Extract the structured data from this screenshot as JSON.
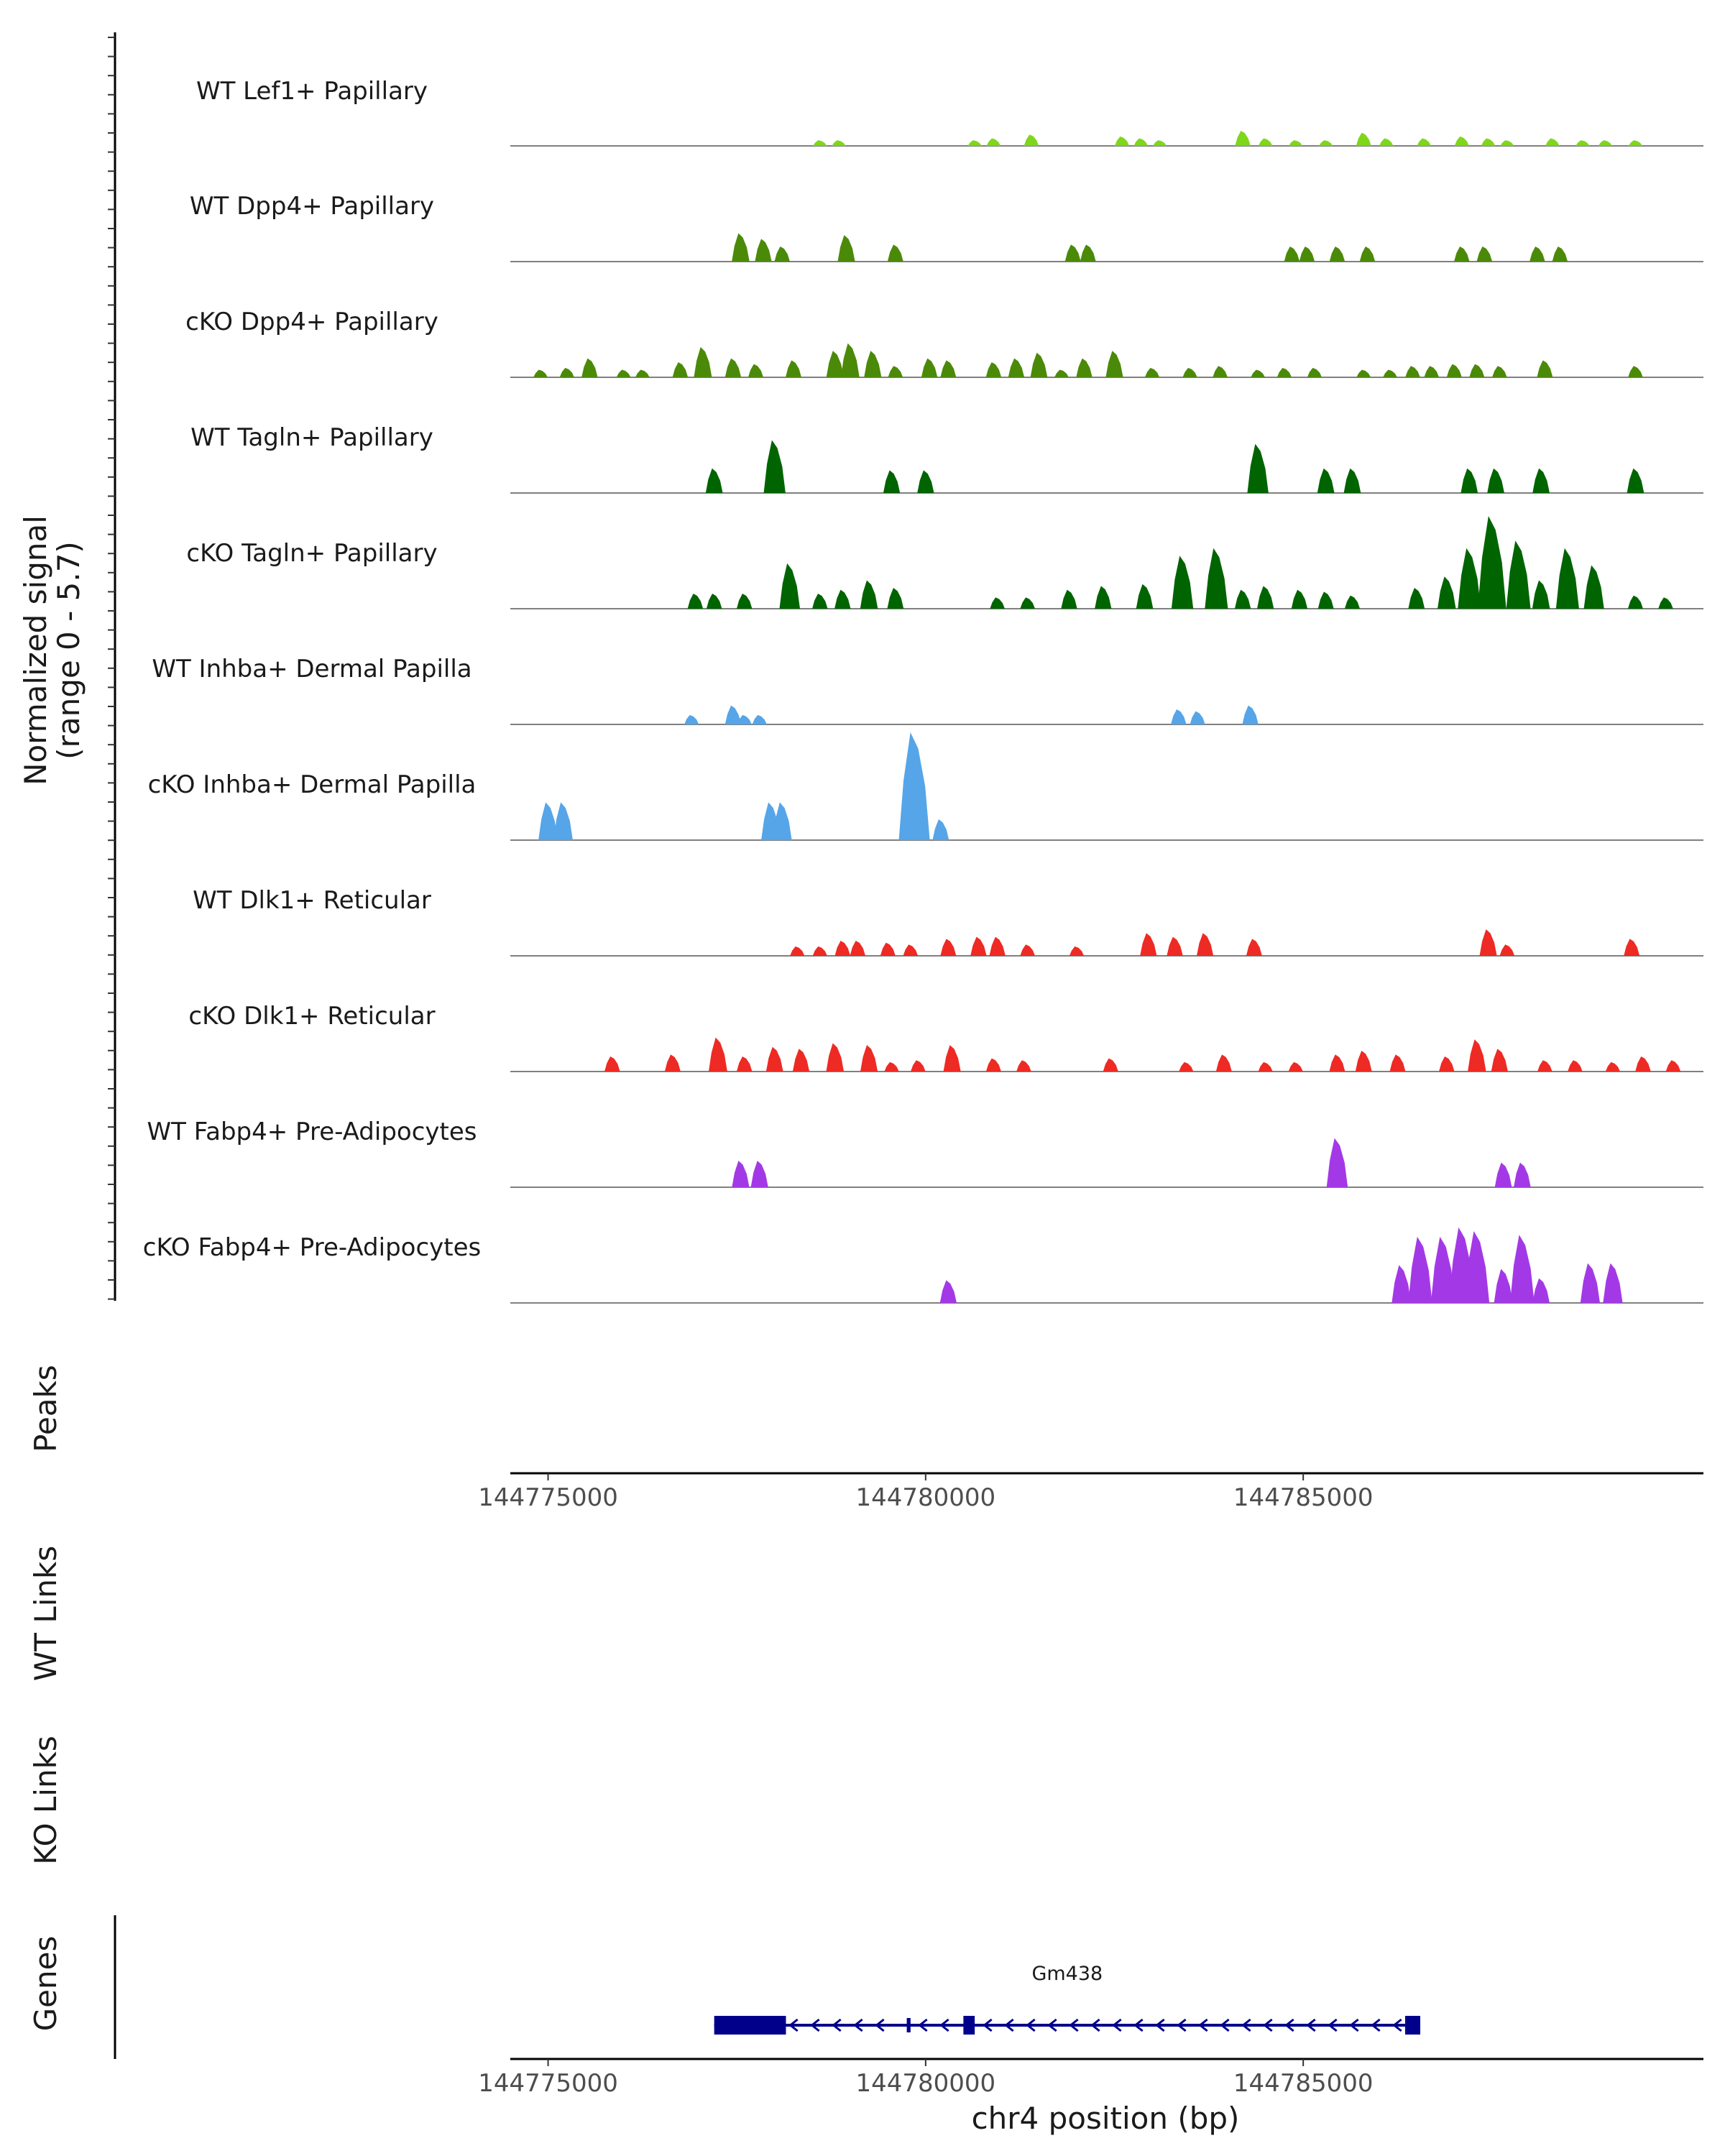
{
  "chart_data": {
    "type": "genome-coverage",
    "y_axis_label": "Normalized signal",
    "y_axis_range_label": "(range 0 - 5.7)",
    "y_range": [
      0,
      5.7
    ],
    "x_axis_label": "chr4 position (bp)",
    "chromosome": "chr4",
    "xlim": [
      144774500,
      144790300
    ],
    "x_ticks": [
      144775000,
      144780000,
      144785000
    ],
    "x_tick_labels": [
      "144775000",
      "144780000",
      "144785000"
    ],
    "tracks": [
      {
        "name": "WT Lef1+ Papillary",
        "color": "#7fd61b",
        "peaks": [
          [
            144778600,
            0.3
          ],
          [
            144778850,
            0.3
          ],
          [
            144780650,
            0.3
          ],
          [
            144780900,
            0.4
          ],
          [
            144781400,
            0.6
          ],
          [
            144782600,
            0.5
          ],
          [
            144782850,
            0.4
          ],
          [
            144783100,
            0.3
          ],
          [
            144784200,
            0.8
          ],
          [
            144784500,
            0.4
          ],
          [
            144784900,
            0.3
          ],
          [
            144785300,
            0.3
          ],
          [
            144785800,
            0.7
          ],
          [
            144786100,
            0.4
          ],
          [
            144786600,
            0.4
          ],
          [
            144787100,
            0.5
          ],
          [
            144787450,
            0.4
          ],
          [
            144787700,
            0.3
          ],
          [
            144788300,
            0.4
          ],
          [
            144788700,
            0.3
          ],
          [
            144789000,
            0.3
          ],
          [
            144789400,
            0.3
          ]
        ]
      },
      {
        "name": "WT Dpp4+ Papillary",
        "color": "#4b8a08",
        "peaks": [
          [
            144777550,
            1.5
          ],
          [
            144777850,
            1.2
          ],
          [
            144778100,
            0.8
          ],
          [
            144778950,
            1.4
          ],
          [
            144779600,
            0.9
          ],
          [
            144781950,
            0.9
          ],
          [
            144782150,
            0.9
          ],
          [
            144784850,
            0.8
          ],
          [
            144785050,
            0.8
          ],
          [
            144785450,
            0.8
          ],
          [
            144785850,
            0.8
          ],
          [
            144787100,
            0.8
          ],
          [
            144787400,
            0.8
          ],
          [
            144788100,
            0.8
          ],
          [
            144788400,
            0.8
          ]
        ]
      },
      {
        "name": "cKO Dpp4+ Papillary",
        "color": "#4b8a08",
        "peaks": [
          [
            144774900,
            0.4
          ],
          [
            144775250,
            0.5
          ],
          [
            144775550,
            1.0
          ],
          [
            144776000,
            0.4
          ],
          [
            144776250,
            0.4
          ],
          [
            144776750,
            0.8
          ],
          [
            144777050,
            1.6
          ],
          [
            144777450,
            1.0
          ],
          [
            144777750,
            0.7
          ],
          [
            144778250,
            0.9
          ],
          [
            144778800,
            1.4
          ],
          [
            144779000,
            1.8
          ],
          [
            144779300,
            1.4
          ],
          [
            144779600,
            0.6
          ],
          [
            144780050,
            1.0
          ],
          [
            144780300,
            0.9
          ],
          [
            144780900,
            0.8
          ],
          [
            144781200,
            1.0
          ],
          [
            144781500,
            1.3
          ],
          [
            144781800,
            0.4
          ],
          [
            144782100,
            1.0
          ],
          [
            144782500,
            1.4
          ],
          [
            144783000,
            0.5
          ],
          [
            144783500,
            0.5
          ],
          [
            144783900,
            0.6
          ],
          [
            144784400,
            0.4
          ],
          [
            144784750,
            0.5
          ],
          [
            144785150,
            0.5
          ],
          [
            144785800,
            0.4
          ],
          [
            144786150,
            0.4
          ],
          [
            144786450,
            0.6
          ],
          [
            144786700,
            0.6
          ],
          [
            144787000,
            0.7
          ],
          [
            144787300,
            0.7
          ],
          [
            144787600,
            0.6
          ],
          [
            144788200,
            0.9
          ],
          [
            144789400,
            0.6
          ]
        ]
      },
      {
        "name": "WT Tagln+ Papillary",
        "color": "#006400",
        "peaks": [
          [
            144777200,
            1.3
          ],
          [
            144778000,
            2.8
          ],
          [
            144779550,
            1.2
          ],
          [
            144780000,
            1.2
          ],
          [
            144784400,
            2.6
          ],
          [
            144785300,
            1.3
          ],
          [
            144785650,
            1.3
          ],
          [
            144787200,
            1.3
          ],
          [
            144787550,
            1.3
          ],
          [
            144788150,
            1.3
          ],
          [
            144789400,
            1.3
          ]
        ]
      },
      {
        "name": "cKO Tagln+ Papillary",
        "color": "#006400",
        "peaks": [
          [
            144776950,
            0.8
          ],
          [
            144777200,
            0.8
          ],
          [
            144777600,
            0.8
          ],
          [
            144778200,
            2.4
          ],
          [
            144778600,
            0.8
          ],
          [
            144778900,
            1.0
          ],
          [
            144779250,
            1.5
          ],
          [
            144779600,
            1.1
          ],
          [
            144780950,
            0.6
          ],
          [
            144781350,
            0.6
          ],
          [
            144781900,
            1.0
          ],
          [
            144782350,
            1.2
          ],
          [
            144782900,
            1.3
          ],
          [
            144783400,
            2.8
          ],
          [
            144783850,
            3.2
          ],
          [
            144784200,
            1.0
          ],
          [
            144784500,
            1.2
          ],
          [
            144784950,
            1.0
          ],
          [
            144785300,
            0.9
          ],
          [
            144785650,
            0.7
          ],
          [
            144786500,
            1.1
          ],
          [
            144786900,
            1.7
          ],
          [
            144787200,
            3.2
          ],
          [
            144787500,
            4.9
          ],
          [
            144787850,
            3.6
          ],
          [
            144788150,
            1.5
          ],
          [
            144788500,
            3.2
          ],
          [
            144788850,
            2.3
          ],
          [
            144789400,
            0.7
          ],
          [
            144789800,
            0.6
          ]
        ]
      },
      {
        "name": "WT Inhba+ Dermal Papilla",
        "color": "#56a5e8",
        "peaks": [
          [
            144776900,
            0.5
          ],
          [
            144777450,
            1.0
          ],
          [
            144777600,
            0.5
          ],
          [
            144777800,
            0.5
          ],
          [
            144783350,
            0.8
          ],
          [
            144783600,
            0.7
          ],
          [
            144784300,
            1.0
          ]
        ]
      },
      {
        "name": "cKO Inhba+ Dermal Papilla",
        "color": "#56a5e8",
        "peaks": [
          [
            144775000,
            2.0
          ],
          [
            144775200,
            2.0
          ],
          [
            144777950,
            2.0
          ],
          [
            144778100,
            2.0
          ],
          [
            144779850,
            5.7
          ],
          [
            144780200,
            1.1
          ]
        ]
      },
      {
        "name": "WT Dlk1+ Reticular",
        "color": "#ee2a24",
        "peaks": [
          [
            144778300,
            0.5
          ],
          [
            144778600,
            0.5
          ],
          [
            144778900,
            0.8
          ],
          [
            144779100,
            0.8
          ],
          [
            144779500,
            0.7
          ],
          [
            144779800,
            0.6
          ],
          [
            144780300,
            0.9
          ],
          [
            144780700,
            1.0
          ],
          [
            144780950,
            1.0
          ],
          [
            144781350,
            0.6
          ],
          [
            144782000,
            0.5
          ],
          [
            144782950,
            1.2
          ],
          [
            144783300,
            1.0
          ],
          [
            144783700,
            1.2
          ],
          [
            144784350,
            0.9
          ],
          [
            144787450,
            1.4
          ],
          [
            144787700,
            0.6
          ],
          [
            144789350,
            0.9
          ]
        ]
      },
      {
        "name": "cKO Dlk1+ Reticular",
        "color": "#ee2a24",
        "peaks": [
          [
            144775850,
            0.8
          ],
          [
            144776650,
            0.9
          ],
          [
            144777250,
            1.8
          ],
          [
            144777600,
            0.8
          ],
          [
            144778000,
            1.3
          ],
          [
            144778350,
            1.2
          ],
          [
            144778800,
            1.5
          ],
          [
            144779250,
            1.4
          ],
          [
            144779550,
            0.5
          ],
          [
            144779900,
            0.6
          ],
          [
            144780350,
            1.4
          ],
          [
            144780900,
            0.7
          ],
          [
            144781300,
            0.6
          ],
          [
            144782450,
            0.7
          ],
          [
            144783450,
            0.5
          ],
          [
            144783950,
            0.9
          ],
          [
            144784500,
            0.5
          ],
          [
            144784900,
            0.5
          ],
          [
            144785450,
            0.9
          ],
          [
            144785800,
            1.1
          ],
          [
            144786250,
            0.9
          ],
          [
            144786900,
            0.8
          ],
          [
            144787300,
            1.7
          ],
          [
            144787600,
            1.2
          ],
          [
            144788200,
            0.6
          ],
          [
            144788600,
            0.6
          ],
          [
            144789100,
            0.5
          ],
          [
            144789500,
            0.8
          ],
          [
            144789900,
            0.6
          ]
        ]
      },
      {
        "name": "WT Fabp4+ Pre-Adipocytes",
        "color": "#a339e6",
        "peaks": [
          [
            144777550,
            1.4
          ],
          [
            144777800,
            1.4
          ],
          [
            144785450,
            2.6
          ],
          [
            144787650,
            1.3
          ],
          [
            144787900,
            1.3
          ]
        ]
      },
      {
        "name": "cKO Fabp4+ Pre-Adipocytes",
        "color": "#a339e6",
        "peaks": [
          [
            144780300,
            1.2
          ],
          [
            144786300,
            2.0
          ],
          [
            144786550,
            3.5
          ],
          [
            144786850,
            3.5
          ],
          [
            144787100,
            4.0
          ],
          [
            144787300,
            3.8
          ],
          [
            144787650,
            1.8
          ],
          [
            144787900,
            3.6
          ],
          [
            144788150,
            1.3
          ],
          [
            144788800,
            2.1
          ],
          [
            144789100,
            2.1
          ]
        ]
      }
    ],
    "side_labels": [
      "Peaks",
      "WT Links",
      "KO Links",
      "Genes"
    ],
    "genes": [
      {
        "name": "Gm438",
        "strand": "-",
        "start": 144777200,
        "end": 144786550,
        "exons": [
          [
            144777200,
            144778150
          ],
          [
            144779750,
            144779800
          ],
          [
            144780500,
            144780650
          ],
          [
            144786350,
            144786550
          ]
        ]
      }
    ]
  }
}
